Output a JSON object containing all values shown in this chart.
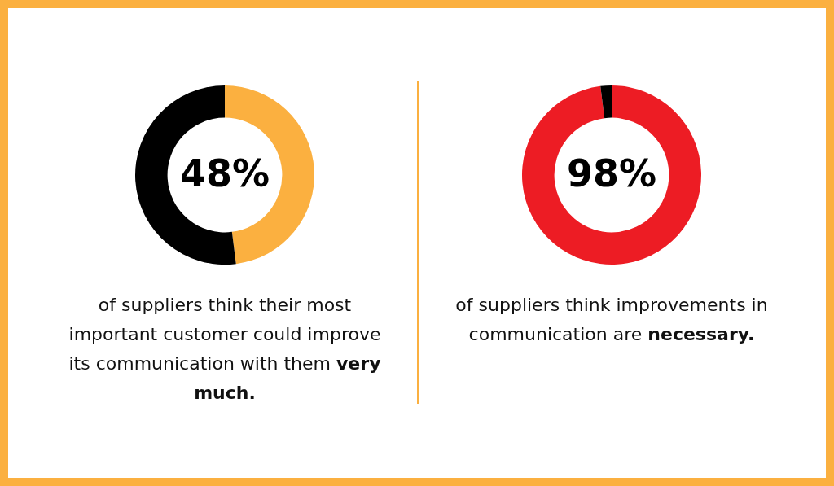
{
  "chart_data": [
    {
      "type": "donut",
      "categories": [
        null,
        null
      ],
      "values": [
        48,
        52
      ],
      "colors": [
        "#fbb040",
        "#000000"
      ],
      "value_labels": [
        "48%",
        null
      ],
      "annotations": [
        "of suppliers think their most important customer could improve its communication with them",
        "very much."
      ]
    },
    {
      "type": "donut",
      "categories": [
        null,
        null
      ],
      "values": [
        98,
        2
      ],
      "colors": [
        "#ed1c24",
        "#000000"
      ],
      "value_labels": [
        "98%",
        null
      ],
      "annotations": [
        "of suppliers think improvements in communication are",
        "necessary."
      ]
    }
  ]
}
